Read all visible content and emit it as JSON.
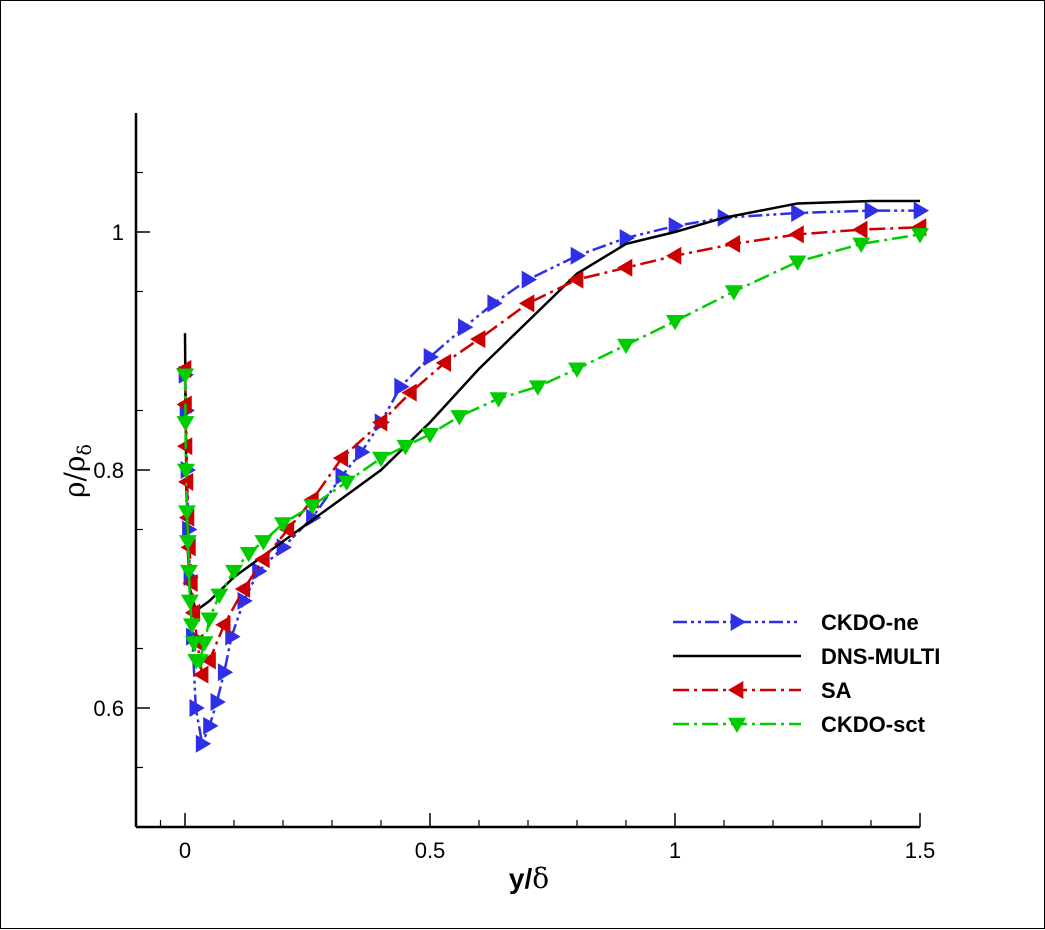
{
  "chart_data": {
    "type": "line",
    "title": "",
    "xlabel": "y/δ",
    "ylabel": "ρ/ρδ",
    "xlabel_main": "y/",
    "xlabel_symbol": "δ",
    "ylabel_main": "ρ/ρ",
    "ylabel_sub": "δ",
    "xlim": [
      -0.1,
      1.5
    ],
    "ylim": [
      0.5,
      1.1
    ],
    "x_ticks": [
      0,
      0.5,
      1,
      1.5
    ],
    "x_tick_labels": [
      "0",
      "0.5",
      "1",
      "1.5"
    ],
    "y_ticks": [
      0.6,
      0.8,
      1.0
    ],
    "y_tick_labels": [
      "0.6",
      "0.8",
      "1"
    ],
    "grid": false,
    "legend_position": "bottom-right",
    "series": [
      {
        "name": "CKDO-ne",
        "color": "#2f2fe6",
        "line_style": "dash-dot-dot",
        "marker": "triangle-right",
        "x": [
          0,
          0.002,
          0.004,
          0.007,
          0.01,
          0.015,
          0.022,
          0.035,
          0.05,
          0.065,
          0.08,
          0.095,
          0.12,
          0.15,
          0.2,
          0.26,
          0.32,
          0.36,
          0.4,
          0.44,
          0.5,
          0.57,
          0.63,
          0.7,
          0.8,
          0.9,
          1.0,
          1.1,
          1.25,
          1.4,
          1.5
        ],
        "values": [
          0.88,
          0.85,
          0.8,
          0.75,
          0.71,
          0.66,
          0.6,
          0.57,
          0.585,
          0.605,
          0.63,
          0.66,
          0.69,
          0.715,
          0.735,
          0.76,
          0.795,
          0.815,
          0.84,
          0.87,
          0.895,
          0.92,
          0.94,
          0.96,
          0.98,
          0.995,
          1.005,
          1.012,
          1.016,
          1.018,
          1.018
        ]
      },
      {
        "name": "DNS-MULTI",
        "color": "#000000",
        "line_style": "solid",
        "marker": "none",
        "x": [
          0,
          0.001,
          0.003,
          0.006,
          0.01,
          0.02,
          0.03,
          0.05,
          0.1,
          0.2,
          0.3,
          0.4,
          0.5,
          0.6,
          0.7,
          0.8,
          0.9,
          1.0,
          1.1,
          1.25,
          1.4,
          1.5
        ],
        "values": [
          0.915,
          0.86,
          0.78,
          0.73,
          0.7,
          0.685,
          0.684,
          0.69,
          0.71,
          0.74,
          0.77,
          0.8,
          0.84,
          0.885,
          0.925,
          0.965,
          0.99,
          1.0,
          1.012,
          1.024,
          1.026,
          1.026
        ]
      },
      {
        "name": "SA",
        "color": "#cc0000",
        "line_style": "dash-dot",
        "marker": "triangle-left",
        "x": [
          0,
          0.001,
          0.002,
          0.004,
          0.006,
          0.009,
          0.013,
          0.018,
          0.025,
          0.035,
          0.05,
          0.08,
          0.12,
          0.16,
          0.21,
          0.26,
          0.32,
          0.4,
          0.46,
          0.53,
          0.6,
          0.7,
          0.8,
          0.9,
          1.0,
          1.12,
          1.25,
          1.38,
          1.5
        ],
        "values": [
          0.885,
          0.855,
          0.82,
          0.79,
          0.76,
          0.735,
          0.705,
          0.68,
          0.655,
          0.628,
          0.64,
          0.67,
          0.7,
          0.725,
          0.75,
          0.775,
          0.81,
          0.84,
          0.865,
          0.89,
          0.91,
          0.94,
          0.96,
          0.97,
          0.98,
          0.99,
          0.998,
          1.002,
          1.004
        ]
      },
      {
        "name": "CKDO-sct",
        "color": "#00cc00",
        "line_style": "dash-dot",
        "marker": "triangle-down",
        "x": [
          0,
          0.001,
          0.002,
          0.004,
          0.006,
          0.008,
          0.01,
          0.014,
          0.018,
          0.023,
          0.03,
          0.04,
          0.05,
          0.07,
          0.1,
          0.13,
          0.16,
          0.2,
          0.26,
          0.33,
          0.4,
          0.45,
          0.5,
          0.56,
          0.64,
          0.72,
          0.8,
          0.9,
          1.0,
          1.12,
          1.25,
          1.38,
          1.5
        ],
        "values": [
          0.88,
          0.84,
          0.8,
          0.765,
          0.74,
          0.715,
          0.69,
          0.67,
          0.655,
          0.64,
          0.64,
          0.655,
          0.675,
          0.695,
          0.715,
          0.73,
          0.74,
          0.755,
          0.77,
          0.79,
          0.81,
          0.82,
          0.83,
          0.845,
          0.86,
          0.87,
          0.885,
          0.905,
          0.925,
          0.95,
          0.975,
          0.99,
          0.998
        ]
      }
    ]
  }
}
